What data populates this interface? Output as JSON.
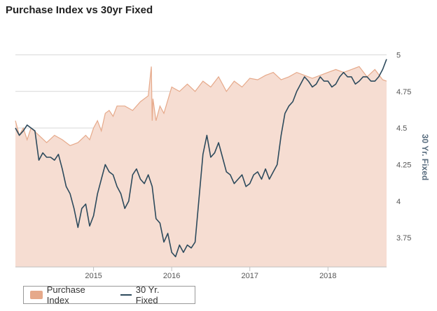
{
  "chart_data": {
    "type": "area",
    "title": "Purchase Index vs 30yr Fixed",
    "x_tick_labels": [
      "2015",
      "2016",
      "2017",
      "2018"
    ],
    "x_range": [
      2014.0,
      2018.75
    ],
    "y_right": {
      "label": "30 Yr. Fixed",
      "range": [
        3.55,
        5.05
      ],
      "ticks": [
        "3.75",
        "4",
        "4.25",
        "4.5",
        "4.75",
        "5"
      ]
    },
    "grid": true,
    "legend_position": "bottom-left",
    "series": [
      {
        "name": "Purchase Index",
        "kind": "area",
        "color": "#e6a98a",
        "fill": "#f6ddd2",
        "x": [
          2014.0,
          2014.05,
          2014.1,
          2014.15,
          2014.2,
          2014.3,
          2014.4,
          2014.5,
          2014.6,
          2014.7,
          2014.8,
          2014.9,
          2014.95,
          2015.0,
          2015.05,
          2015.1,
          2015.15,
          2015.2,
          2015.25,
          2015.3,
          2015.4,
          2015.5,
          2015.6,
          2015.7,
          2015.74,
          2015.75,
          2015.76,
          2015.8,
          2015.85,
          2015.9,
          2016.0,
          2016.1,
          2016.2,
          2016.3,
          2016.4,
          2016.5,
          2016.6,
          2016.7,
          2016.8,
          2016.9,
          2017.0,
          2017.1,
          2017.2,
          2017.3,
          2017.4,
          2017.5,
          2017.6,
          2017.7,
          2017.8,
          2017.9,
          2018.0,
          2018.1,
          2018.2,
          2018.3,
          2018.4,
          2018.5,
          2018.6,
          2018.7,
          2018.75
        ],
        "values": [
          4.55,
          4.45,
          4.5,
          4.42,
          4.5,
          4.45,
          4.4,
          4.45,
          4.42,
          4.38,
          4.4,
          4.45,
          4.42,
          4.5,
          4.55,
          4.48,
          4.6,
          4.62,
          4.58,
          4.65,
          4.65,
          4.62,
          4.68,
          4.72,
          4.92,
          4.55,
          4.7,
          4.55,
          4.65,
          4.6,
          4.78,
          4.75,
          4.8,
          4.75,
          4.82,
          4.78,
          4.85,
          4.75,
          4.82,
          4.78,
          4.84,
          4.83,
          4.86,
          4.88,
          4.83,
          4.85,
          4.88,
          4.86,
          4.84,
          4.86,
          4.88,
          4.9,
          4.88,
          4.9,
          4.92,
          4.85,
          4.9,
          4.83,
          4.82
        ]
      },
      {
        "name": "30 Yr. Fixed",
        "kind": "line",
        "color": "#2d4a5c",
        "x": [
          2014.0,
          2014.05,
          2014.1,
          2014.15,
          2014.2,
          2014.25,
          2014.3,
          2014.35,
          2014.4,
          2014.45,
          2014.5,
          2014.55,
          2014.6,
          2014.65,
          2014.7,
          2014.75,
          2014.8,
          2014.85,
          2014.9,
          2014.95,
          2015.0,
          2015.05,
          2015.1,
          2015.15,
          2015.2,
          2015.25,
          2015.3,
          2015.35,
          2015.4,
          2015.45,
          2015.5,
          2015.55,
          2015.6,
          2015.65,
          2015.7,
          2015.75,
          2015.8,
          2015.85,
          2015.9,
          2015.95,
          2016.0,
          2016.05,
          2016.1,
          2016.15,
          2016.2,
          2016.25,
          2016.3,
          2016.35,
          2016.4,
          2016.45,
          2016.5,
          2016.55,
          2016.6,
          2016.65,
          2016.7,
          2016.75,
          2016.8,
          2016.85,
          2016.9,
          2016.95,
          2017.0,
          2017.05,
          2017.1,
          2017.15,
          2017.2,
          2017.25,
          2017.3,
          2017.35,
          2017.4,
          2017.45,
          2017.5,
          2017.55,
          2017.6,
          2017.65,
          2017.7,
          2017.75,
          2017.8,
          2017.85,
          2017.9,
          2017.95,
          2018.0,
          2018.05,
          2018.1,
          2018.15,
          2018.2,
          2018.25,
          2018.3,
          2018.35,
          2018.4,
          2018.45,
          2018.5,
          2018.55,
          2018.6,
          2018.65,
          2018.7,
          2018.75
        ],
        "values": [
          4.5,
          4.45,
          4.48,
          4.52,
          4.5,
          4.48,
          4.28,
          4.33,
          4.3,
          4.3,
          4.28,
          4.32,
          4.22,
          4.1,
          4.05,
          3.95,
          3.82,
          3.95,
          3.98,
          3.83,
          3.9,
          4.05,
          4.15,
          4.25,
          4.2,
          4.18,
          4.1,
          4.05,
          3.95,
          4.0,
          4.18,
          4.22,
          4.15,
          4.12,
          4.18,
          4.1,
          3.88,
          3.85,
          3.72,
          3.78,
          3.65,
          3.62,
          3.7,
          3.65,
          3.7,
          3.68,
          3.72,
          4.02,
          4.32,
          4.45,
          4.3,
          4.33,
          4.4,
          4.3,
          4.2,
          4.18,
          4.12,
          4.15,
          4.18,
          4.1,
          4.12,
          4.18,
          4.2,
          4.15,
          4.22,
          4.15,
          4.2,
          4.25,
          4.45,
          4.6,
          4.65,
          4.68,
          4.75,
          4.8,
          4.85,
          4.82,
          4.78,
          4.8,
          4.85,
          4.82,
          4.82,
          4.78,
          4.8,
          4.85,
          4.88,
          4.85,
          4.85,
          4.8,
          4.82,
          4.85,
          4.85,
          4.82,
          4.82,
          4.85,
          4.9,
          4.97
        ]
      }
    ]
  }
}
